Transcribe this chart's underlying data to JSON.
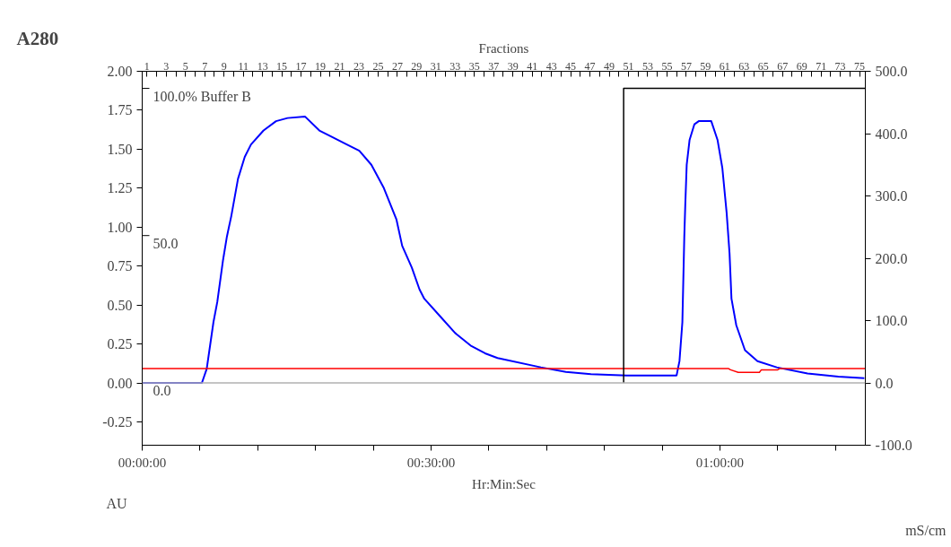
{
  "chart_data": {
    "type": "line",
    "xlabel": "Hr:Min:Sec",
    "ylabel": "A280",
    "y2label": "mS/cm",
    "x2label": "Fractions",
    "annotations": [
      "AU"
    ],
    "xlim": [
      0,
      75.1
    ],
    "xticks": [
      {
        "value": 0,
        "label": "00:00:00"
      },
      {
        "value": 6,
        "label": null
      },
      {
        "value": 12,
        "label": null
      },
      {
        "value": 18,
        "label": null
      },
      {
        "value": 24,
        "label": null
      },
      {
        "value": 30,
        "label": "00:30:00"
      },
      {
        "value": 36,
        "label": null
      },
      {
        "value": 42,
        "label": null
      },
      {
        "value": 48,
        "label": null
      },
      {
        "value": 54,
        "label": null
      },
      {
        "value": 60,
        "label": "01:00:00"
      },
      {
        "value": 66,
        "label": null
      },
      {
        "value": 72,
        "label": null
      }
    ],
    "ylim": [
      -0.4,
      2.0
    ],
    "yticks": [
      {
        "value": -0.25,
        "label": "-0.25"
      },
      {
        "value": 0,
        "label": "0.00"
      },
      {
        "value": 0.25,
        "label": "0.25"
      },
      {
        "value": 0.5,
        "label": "0.50"
      },
      {
        "value": 0.75,
        "label": "0.75"
      },
      {
        "value": 1,
        "label": "1.00"
      },
      {
        "value": 1.25,
        "label": "1.25"
      },
      {
        "value": 1.5,
        "label": "1.50"
      },
      {
        "value": 1.75,
        "label": "1.75"
      },
      {
        "value": 2,
        "label": "2.00"
      }
    ],
    "y2lim": [
      -100,
      500
    ],
    "y2ticks": [
      {
        "value": -100,
        "label": "-100.0"
      },
      {
        "value": 0,
        "label": "0.0"
      },
      {
        "value": 100,
        "label": "100.0"
      },
      {
        "value": 200,
        "label": "200.0"
      },
      {
        "value": 300,
        "label": "300.0"
      },
      {
        "value": 400,
        "label": "400.0"
      },
      {
        "value": 500,
        "label": "500.0"
      }
    ],
    "y3lim": [
      -21.2,
      105.8
    ],
    "y3ticks": [
      {
        "value": 0,
        "label": "0.0"
      },
      {
        "value": 50,
        "label": "50.0"
      },
      {
        "value": 100,
        "label": "100.0% Buffer B"
      }
    ],
    "x2lim": [
      0.5,
      75.6
    ],
    "x2ticks": [
      1,
      {
        "value": 2,
        "label": null
      },
      3,
      {
        "value": 4,
        "label": null
      },
      5,
      {
        "value": 6,
        "label": null
      },
      7,
      {
        "value": 8,
        "label": null
      },
      9,
      {
        "value": 10,
        "label": null
      },
      11,
      {
        "value": 12,
        "label": null
      },
      13,
      {
        "value": 14,
        "label": null
      },
      15,
      {
        "value": 16,
        "label": null
      },
      17,
      {
        "value": 18,
        "label": null
      },
      19,
      {
        "value": 20,
        "label": null
      },
      21,
      {
        "value": 22,
        "label": null
      },
      23,
      {
        "value": 24,
        "label": null
      },
      25,
      {
        "value": 26,
        "label": null
      },
      27,
      {
        "value": 28,
        "label": null
      },
      29,
      {
        "value": 30,
        "label": null
      },
      31,
      {
        "value": 32,
        "label": null
      },
      33,
      {
        "value": 34,
        "label": null
      },
      35,
      {
        "value": 36,
        "label": null
      },
      37,
      {
        "value": 38,
        "label": null
      },
      39,
      {
        "value": 40,
        "label": null
      },
      41,
      {
        "value": 42,
        "label": null
      },
      43,
      {
        "value": 44,
        "label": null
      },
      45,
      {
        "value": 46,
        "label": null
      },
      47,
      {
        "value": 48,
        "label": null
      },
      49,
      {
        "value": 50,
        "label": null
      },
      51,
      {
        "value": 52,
        "label": null
      },
      53,
      {
        "value": 54,
        "label": null
      },
      55,
      {
        "value": 56,
        "label": null
      },
      57,
      {
        "value": 58,
        "label": null
      },
      59,
      {
        "value": 60,
        "label": null
      },
      61,
      {
        "value": 62,
        "label": null
      },
      63,
      {
        "value": 64,
        "label": null
      },
      65,
      {
        "value": 66,
        "label": null
      },
      67,
      {
        "value": 68,
        "label": null
      },
      69,
      {
        "value": 70,
        "label": null
      },
      71,
      {
        "value": 72,
        "label": null
      },
      73,
      {
        "value": 74,
        "label": null
      },
      75
    ],
    "ref_lines": [
      {
        "axis": "y",
        "value": 0,
        "color": "#b0b0b0"
      }
    ],
    "series": [
      {
        "color": "#0000ff",
        "x": [
          0,
          6.2,
          6.7,
          7.4,
          7.8,
          8.4,
          8.8,
          9.25,
          9.95,
          10.65,
          11.3,
          12.6,
          13.9,
          15.1,
          16.9,
          18.4,
          19.65,
          21.25,
          22.55,
          23.8,
          25.1,
          26.4,
          27.0,
          28.0,
          28.8,
          29.3,
          30.9,
          32.5,
          34.1,
          35.6,
          36.9,
          41.4,
          44.0,
          46.6,
          50.3,
          55.5,
          55.8,
          56.1,
          56.3,
          56.4,
          56.55,
          56.85,
          57.35,
          57.8,
          59.1,
          59.75,
          60.25,
          60.7,
          61.0,
          61.2,
          61.7,
          62.6,
          63.9,
          65.9,
          69.1,
          72.3,
          75.0
        ],
        "values": [
          0,
          0,
          0.09,
          0.39,
          0.52,
          0.79,
          0.94,
          1.07,
          1.31,
          1.45,
          1.53,
          1.62,
          1.68,
          1.7,
          1.71,
          1.62,
          1.58,
          1.53,
          1.49,
          1.4,
          1.25,
          1.05,
          0.88,
          0.74,
          0.6,
          0.54,
          0.43,
          0.32,
          0.24,
          0.19,
          0.16,
          0.1,
          0.07,
          0.056,
          0.048,
          0.048,
          0.14,
          0.39,
          0.94,
          1.14,
          1.4,
          1.56,
          1.66,
          1.68,
          1.68,
          1.56,
          1.38,
          1.09,
          0.83,
          0.54,
          0.37,
          0.21,
          0.14,
          0.1,
          0.06,
          0.04,
          0.03
        ]
      },
      {
        "color": "#ff0000",
        "axis": "y2",
        "x": [
          0,
          60.9,
          61.1,
          61.9,
          64.1,
          64.3,
          66.0,
          66.2,
          75.1
        ],
        "values": [
          23,
          23,
          21,
          17,
          17,
          21,
          21,
          23,
          23
        ]
      },
      {
        "color": "#000000",
        "axis": "y3",
        "x": [
          50,
          50,
          75.1
        ],
        "values": [
          0,
          100,
          100
        ]
      }
    ]
  }
}
